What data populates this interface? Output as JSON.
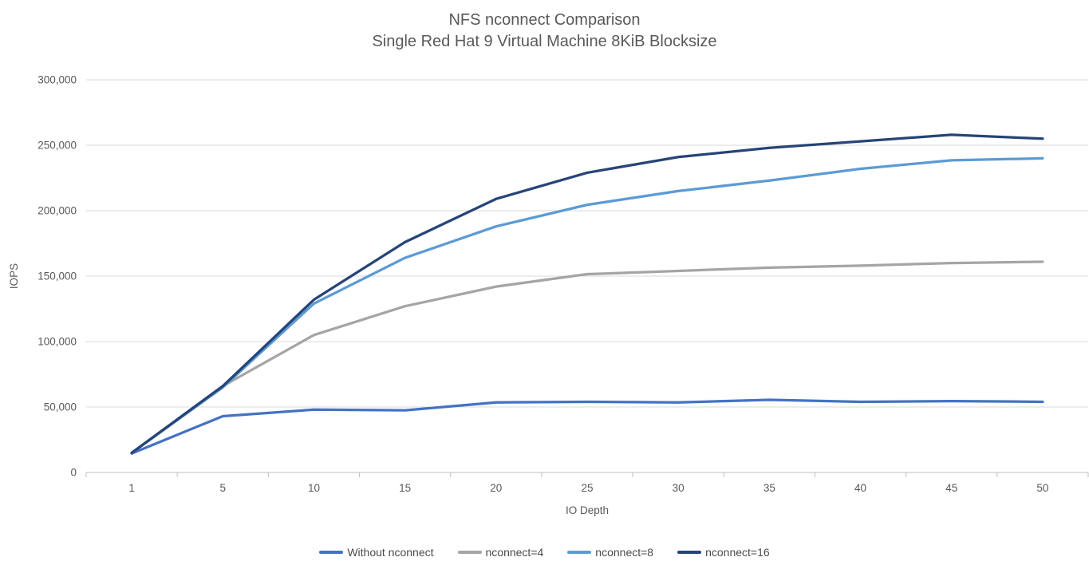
{
  "title": {
    "line1": "NFS nconnect Comparison",
    "line2": "Single Red Hat 9 Virtual Machine 8KiB Blocksize"
  },
  "chart_data": {
    "type": "line",
    "title": "NFS nconnect Comparison — Single Red Hat 9 Virtual Machine 8KiB Blocksize",
    "xlabel": "IO Depth",
    "ylabel": "IOPS",
    "x": [
      1,
      5,
      10,
      15,
      20,
      25,
      30,
      35,
      40,
      45,
      50
    ],
    "x_tick_labels": [
      "1",
      "5",
      "10",
      "15",
      "20",
      "25",
      "30",
      "35",
      "40",
      "45",
      "50"
    ],
    "ylim": [
      0,
      300000
    ],
    "y_ticks": [
      0,
      50000,
      100000,
      150000,
      200000,
      250000,
      300000
    ],
    "y_tick_labels": [
      "0",
      "50,000",
      "100,000",
      "150,000",
      "200,000",
      "250,000",
      "300,000"
    ],
    "grid": true,
    "legend_position": "bottom",
    "series": [
      {
        "name": "Without nconnect",
        "color": "#4472C4",
        "values": [
          14500,
          43000,
          48000,
          47500,
          53500,
          54000,
          53500,
          55500,
          54000,
          54500,
          54000
        ]
      },
      {
        "name": "nconnect=4",
        "color": "#A5A5A5",
        "values": [
          15000,
          66000,
          105000,
          127000,
          142000,
          151500,
          154000,
          156500,
          158000,
          160000,
          161000
        ]
      },
      {
        "name": "nconnect=8",
        "color": "#5B9BD5",
        "values": [
          15000,
          65000,
          129000,
          164000,
          188000,
          204500,
          215000,
          223000,
          232000,
          238500,
          240000
        ]
      },
      {
        "name": "nconnect=16",
        "color": "#264478",
        "values": [
          15000,
          66000,
          132000,
          176000,
          209000,
          229000,
          241000,
          248000,
          253000,
          258000,
          255000
        ]
      }
    ]
  },
  "colors": {
    "title_text": "#595959",
    "axis_text": "#595959",
    "gridline": "#D9D9D9",
    "axis_line": "#BFBFBF",
    "background": "#FFFFFF"
  }
}
